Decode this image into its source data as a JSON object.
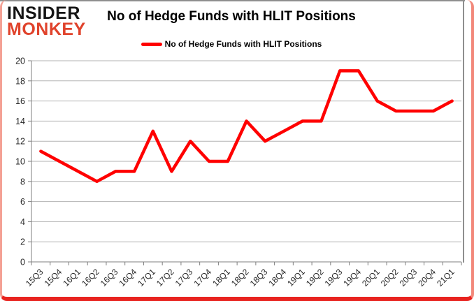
{
  "logo": {
    "line1": "INSIDER",
    "line2": "MONKEY"
  },
  "header": {
    "title": "No of Hedge Funds with HLIT Positions"
  },
  "legend": {
    "label": "No of Hedge Funds with HLIT Positions"
  },
  "colors": {
    "series_line": "#ff0000",
    "logo_accent": "#e0432c",
    "gridline": "#b3b3b3",
    "axis": "#7f7f7f",
    "tick_label": "#262626",
    "frame_red": "#e8231f",
    "frame_pink": "#f2887a",
    "chart_border_gray": "#8f8f8f"
  },
  "chart_data": {
    "type": "line",
    "title": "No of Hedge Funds with HLIT Positions",
    "categories": [
      "15Q3",
      "15Q4",
      "16Q1",
      "16Q2",
      "16Q3",
      "16Q4",
      "17Q1",
      "17Q2",
      "17Q3",
      "17Q4",
      "18Q1",
      "18Q2",
      "18Q3",
      "18Q4",
      "19Q1",
      "19Q2",
      "19Q3",
      "19Q4",
      "20Q1",
      "20Q2",
      "20Q3",
      "20Q4",
      "21Q1"
    ],
    "series": [
      {
        "name": "No of Hedge Funds with HLIT Positions",
        "values": [
          11,
          10,
          9,
          8,
          9,
          9,
          13,
          9,
          12,
          10,
          10,
          14,
          12,
          13,
          14,
          14,
          19,
          19,
          16,
          15,
          15,
          15,
          16
        ]
      }
    ],
    "xlabel": "",
    "ylabel": "",
    "ylim": [
      0,
      20
    ],
    "ytick_step": 2,
    "grid": true,
    "legend_position": "top-center",
    "x_label_rotation": -45
  }
}
